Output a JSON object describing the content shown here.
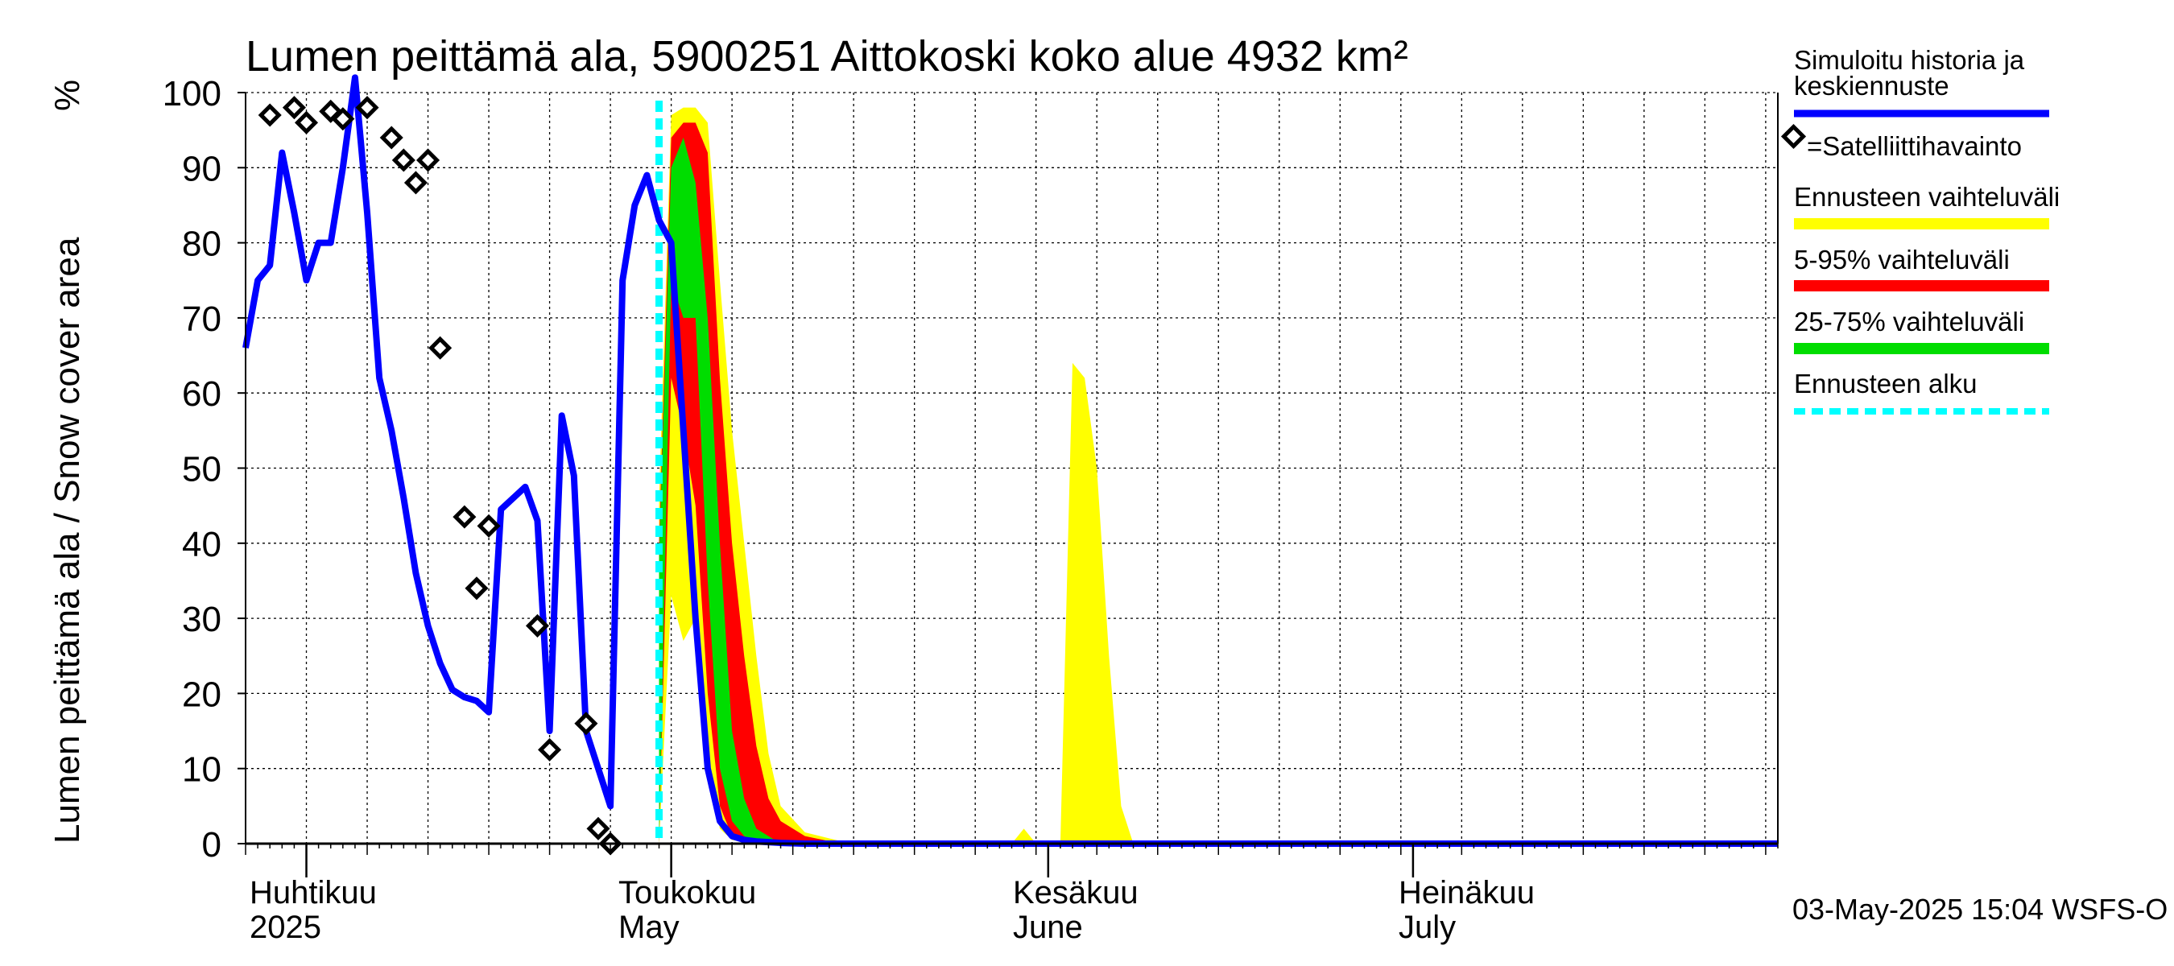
{
  "chart_data": {
    "type": "area",
    "title": "Lumen peittämä ala, 5900251 Aittokoski koko alue 4932 km²",
    "ylabel": "Lumen peittämä ala / Snow cover area",
    "yunit": "%",
    "ylim": [
      0,
      100
    ],
    "yticks": [
      0,
      10,
      20,
      30,
      40,
      50,
      60,
      70,
      80,
      90,
      100
    ],
    "xlim": [
      "2025-03-27",
      "2025-07-31"
    ],
    "x_labels": [
      {
        "date": "2025-04-01",
        "line1": "Huhtikuu",
        "line2": "2025"
      },
      {
        "date": "2025-05-01",
        "line1": "Toukokuu",
        "line2": "May"
      },
      {
        "date": "2025-06-01",
        "line1": "Kesäkuu",
        "line2": "June"
      },
      {
        "date": "2025-07-01",
        "line1": "Heinäkuu",
        "line2": "July"
      }
    ],
    "grid": true,
    "forecast_start": "2025-04-30",
    "legend": {
      "position": "right",
      "items": [
        {
          "label": "Simuloitu historia ja keskiennuste",
          "color": "#0000ff",
          "style": "line"
        },
        {
          "label": "=Satelliittihavainto",
          "color": "#000000",
          "style": "diamond"
        },
        {
          "label": "Ennusteen vaihteluväli",
          "color": "#ffff00",
          "style": "band"
        },
        {
          "label": "5-95% vaihteluväli",
          "color": "#ff0000",
          "style": "band"
        },
        {
          "label": "25-75% vaihteluväli",
          "color": "#00dd00",
          "style": "band"
        },
        {
          "label": "Ennusteen alku",
          "color": "#00ffff",
          "style": "dashed"
        }
      ]
    },
    "simulated": {
      "name": "Simuloitu historia ja keskiennuste",
      "x": [
        "2025-03-27",
        "2025-03-28",
        "2025-03-29",
        "2025-03-30",
        "2025-03-31",
        "2025-04-01",
        "2025-04-02",
        "2025-04-03",
        "2025-04-04",
        "2025-04-05",
        "2025-04-06",
        "2025-04-07",
        "2025-04-08",
        "2025-04-09",
        "2025-04-10",
        "2025-04-11",
        "2025-04-12",
        "2025-04-13",
        "2025-04-14",
        "2025-04-15",
        "2025-04-16",
        "2025-04-17",
        "2025-04-18",
        "2025-04-19",
        "2025-04-20",
        "2025-04-21",
        "2025-04-22",
        "2025-04-23",
        "2025-04-24",
        "2025-04-25",
        "2025-04-26",
        "2025-04-27",
        "2025-04-28",
        "2025-04-29",
        "2025-04-30",
        "2025-05-01",
        "2025-05-02",
        "2025-05-03",
        "2025-05-04",
        "2025-05-05",
        "2025-05-06",
        "2025-05-07",
        "2025-05-08",
        "2025-05-09",
        "2025-05-10",
        "2025-05-12",
        "2025-05-15",
        "2025-05-20",
        "2025-06-01",
        "2025-07-01",
        "2025-07-31"
      ],
      "values": [
        66,
        75,
        77,
        92,
        84,
        75,
        80,
        80,
        90,
        102,
        84,
        62,
        55,
        46,
        36,
        29,
        24,
        20.5,
        19.5,
        19,
        17.5,
        44.5,
        46,
        47.5,
        43,
        15,
        57,
        49,
        15,
        10,
        5,
        75,
        85,
        89,
        83,
        80,
        55,
        30,
        10,
        3,
        1,
        0.5,
        0.3,
        0.2,
        0.1,
        0,
        0,
        0,
        0,
        0,
        0
      ]
    },
    "satellite": {
      "name": "Satelliittihavainto",
      "x": [
        "2025-03-29",
        "2025-03-31",
        "2025-04-01",
        "2025-04-03",
        "2025-04-04",
        "2025-04-06",
        "2025-04-08",
        "2025-04-09",
        "2025-04-10",
        "2025-04-11",
        "2025-04-12",
        "2025-04-14",
        "2025-04-15",
        "2025-04-16",
        "2025-04-20",
        "2025-04-21",
        "2025-04-24",
        "2025-04-25",
        "2025-04-26"
      ],
      "values": [
        97,
        98,
        96,
        97.5,
        96.5,
        98,
        94,
        91,
        88,
        91,
        66,
        43.5,
        34,
        42.3,
        29,
        12.5,
        16,
        2,
        0
      ]
    },
    "band_forecast_range": {
      "name": "Ennusteen vaihteluväli",
      "x": [
        "2025-04-30",
        "2025-05-01",
        "2025-05-02",
        "2025-05-03",
        "2025-05-04",
        "2025-05-05",
        "2025-05-06",
        "2025-05-07",
        "2025-05-08",
        "2025-05-09",
        "2025-05-10",
        "2025-05-12",
        "2025-05-15",
        "2025-05-20",
        "2025-05-29",
        "2025-05-30",
        "2025-05-31",
        "2025-06-02",
        "2025-06-03",
        "2025-06-04",
        "2025-06-05",
        "2025-06-06",
        "2025-06-07",
        "2025-06-08",
        "2025-06-09",
        "2025-06-10",
        "2025-07-31"
      ],
      "upper": [
        46,
        97,
        98,
        98,
        96,
        75,
        55,
        40,
        25,
        12,
        5,
        1.5,
        0.3,
        0,
        0,
        2,
        0,
        0,
        64,
        62,
        50,
        25,
        5,
        0,
        0,
        0,
        0
      ],
      "lower": [
        0,
        33,
        27,
        30,
        12,
        2,
        0.5,
        0.2,
        0,
        0,
        0,
        0,
        0,
        0,
        0,
        0,
        0,
        0,
        0,
        0,
        0,
        0,
        0,
        0,
        0,
        0,
        0
      ]
    },
    "band_5_95": {
      "name": "5-95% vaihteluväli",
      "x": [
        "2025-04-30",
        "2025-05-01",
        "2025-05-02",
        "2025-05-03",
        "2025-05-04",
        "2025-05-05",
        "2025-05-06",
        "2025-05-07",
        "2025-05-08",
        "2025-05-09",
        "2025-05-10",
        "2025-05-12",
        "2025-05-15"
      ],
      "upper": [
        40,
        94,
        96,
        96,
        92,
        62,
        40,
        25,
        13,
        6,
        3,
        1,
        0
      ],
      "lower": [
        0,
        62,
        55,
        45,
        20,
        5,
        1,
        0.3,
        0,
        0,
        0,
        0,
        0
      ]
    },
    "band_25_75": {
      "name": "25-75% vaihteluväli",
      "x": [
        "2025-04-30",
        "2025-05-01",
        "2025-05-02",
        "2025-05-03",
        "2025-05-04",
        "2025-05-05",
        "2025-05-06",
        "2025-05-07",
        "2025-05-08",
        "2025-05-10"
      ],
      "upper": [
        38,
        90,
        94,
        88,
        70,
        40,
        15,
        6,
        2,
        0
      ],
      "lower": [
        0,
        75,
        70,
        70,
        35,
        10,
        3,
        1,
        0.3,
        0
      ]
    }
  },
  "footer": {
    "timestamp": "03-May-2025 15:04 WSFS-O"
  }
}
